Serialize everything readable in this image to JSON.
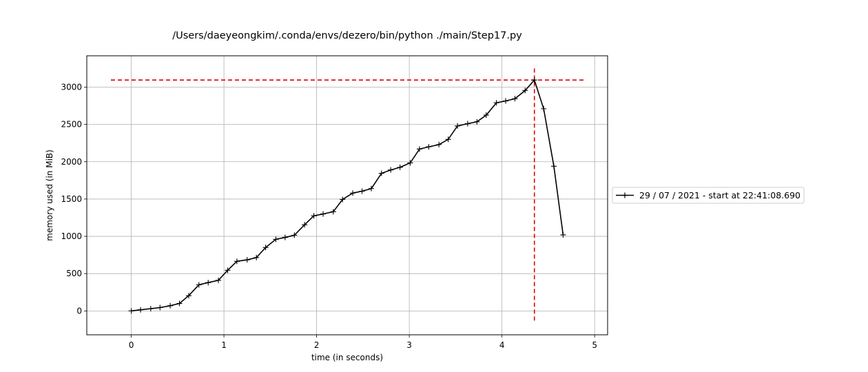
{
  "chart_data": {
    "type": "line",
    "title": "/Users/daeyeongkim/.conda/envs/dezero/bin/python ./main/Step17.py",
    "xlabel": "time (in seconds)",
    "ylabel": "memory used (in MiB)",
    "xlim": [
      -0.48,
      5.14
    ],
    "ylim": [
      -320,
      3420
    ],
    "xticks": [
      0,
      1,
      2,
      3,
      4,
      5
    ],
    "yticks": [
      0,
      500,
      1000,
      1500,
      2000,
      2500,
      3000
    ],
    "grid": true,
    "legend_position": "right",
    "series": [
      {
        "name": "29 / 07 / 2021 - start at 22:41:08.690",
        "color": "#000000",
        "marker": "plus",
        "x": [
          0.0,
          0.1,
          0.21,
          0.31,
          0.42,
          0.52,
          0.62,
          0.73,
          0.83,
          0.94,
          1.04,
          1.14,
          1.25,
          1.35,
          1.45,
          1.56,
          1.66,
          1.76,
          1.87,
          1.97,
          2.07,
          2.18,
          2.28,
          2.39,
          2.49,
          2.59,
          2.7,
          2.8,
          2.9,
          3.01,
          3.11,
          3.21,
          3.32,
          3.42,
          3.52,
          3.63,
          3.73,
          3.83,
          3.94,
          4.04,
          4.14,
          4.25,
          4.35,
          4.45,
          4.56,
          4.66
        ],
        "y": [
          0,
          15,
          30,
          45,
          70,
          100,
          205,
          350,
          380,
          410,
          545,
          665,
          685,
          715,
          850,
          960,
          985,
          1015,
          1155,
          1275,
          1300,
          1330,
          1495,
          1580,
          1605,
          1640,
          1845,
          1890,
          1925,
          1985,
          2170,
          2200,
          2230,
          2300,
          2480,
          2510,
          2535,
          2625,
          2790,
          2815,
          2845,
          2955,
          3095,
          2710,
          1940,
          1020
        ]
      }
    ],
    "peak_markers": {
      "color": "#e00000",
      "horizontal": {
        "y": 3095,
        "x_range": [
          -0.22,
          4.88
        ]
      },
      "vertical": {
        "x": 4.35,
        "y_range": [
          -150,
          3250
        ]
      }
    }
  }
}
